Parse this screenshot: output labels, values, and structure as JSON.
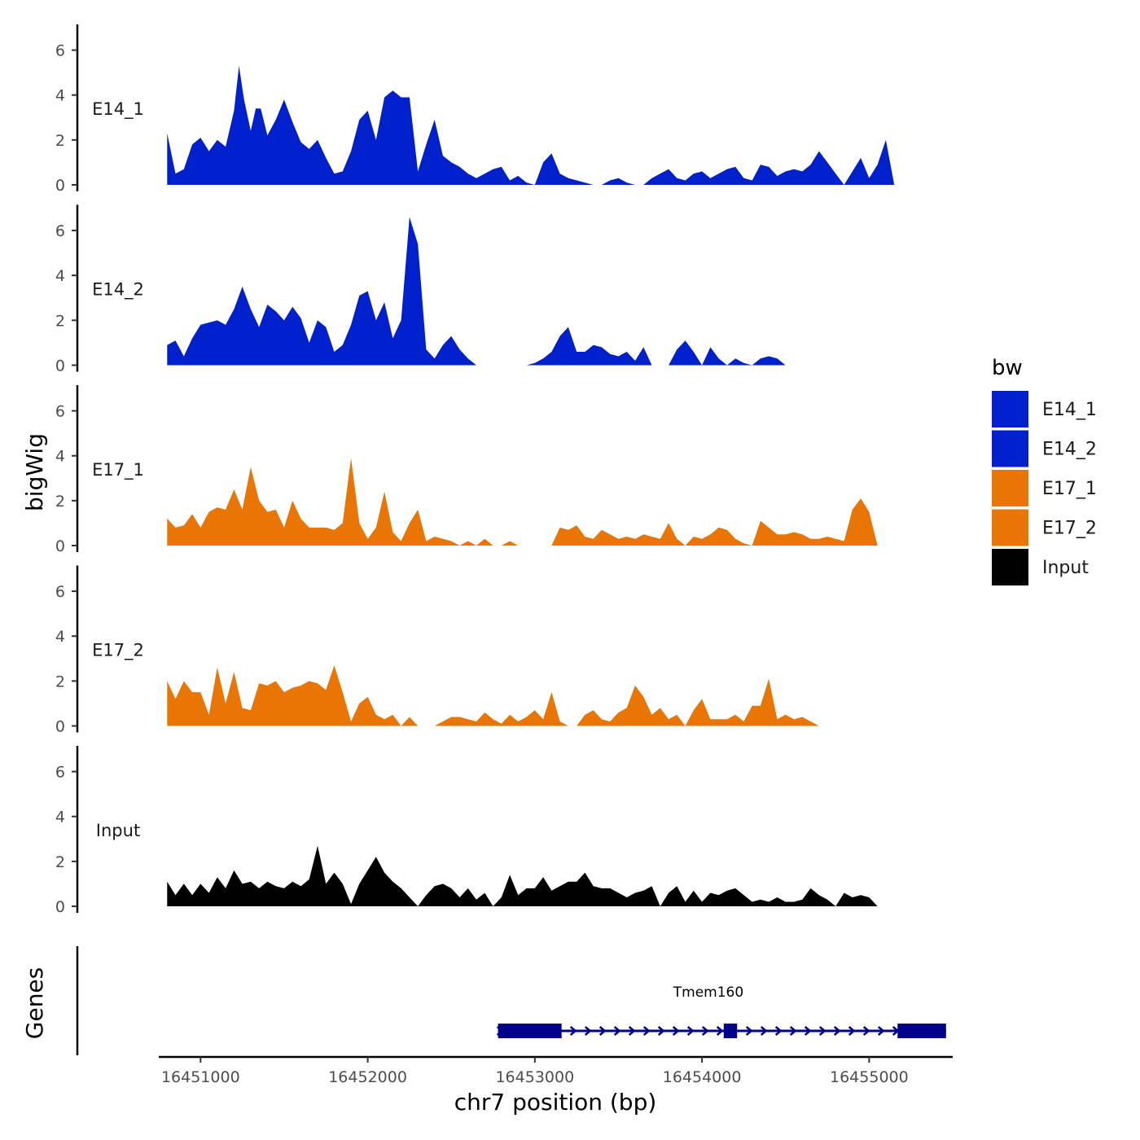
{
  "chart_data": {
    "type": "area",
    "title": "",
    "ylabel": "bigWig",
    "xlabel": "chr7 position (bp)",
    "genes_label": "Genes",
    "xlim": [
      16450750,
      16455500
    ],
    "ylim": [
      0,
      7
    ],
    "yticks": [
      0,
      2,
      4,
      6
    ],
    "xticks": [
      16451000,
      16452000,
      16453000,
      16454000,
      16455000
    ],
    "xtick_labels": [
      "16451000",
      "16452000",
      "16453000",
      "16454000",
      "16455000"
    ],
    "legend": {
      "title": "bw",
      "position": "right",
      "entries": [
        {
          "label": "E14_1",
          "color": "#0020CC"
        },
        {
          "label": "E14_2",
          "color": "#0020CC"
        },
        {
          "label": "E17_1",
          "color": "#E87504"
        },
        {
          "label": "E17_2",
          "color": "#E87504"
        },
        {
          "label": "Input",
          "color": "#000000"
        }
      ]
    },
    "series": [
      {
        "name": "E14_1",
        "color": "#0020CC",
        "x": [
          16450800,
          16450850,
          16450900,
          16450950,
          16451000,
          16451050,
          16451100,
          16451150,
          16451200,
          16451230,
          16451260,
          16451300,
          16451330,
          16451360,
          16451400,
          16451450,
          16451500,
          16451550,
          16451600,
          16451650,
          16451700,
          16451750,
          16451800,
          16451850,
          16451900,
          16451950,
          16452000,
          16452050,
          16452100,
          16452150,
          16452200,
          16452250,
          16452300,
          16452350,
          16452400,
          16452450,
          16452500,
          16452550,
          16452600,
          16452650,
          16452700,
          16452750,
          16452800,
          16452850,
          16452900,
          16452950,
          16453000,
          16453050,
          16453100,
          16453150,
          16453200,
          16453250,
          16453300,
          16453350,
          16453400,
          16453450,
          16453500,
          16453550,
          16453600,
          16453650,
          16453700,
          16453750,
          16453800,
          16453850,
          16453900,
          16453950,
          16454000,
          16454050,
          16454100,
          16454150,
          16454200,
          16454250,
          16454300,
          16454350,
          16454400,
          16454450,
          16454500,
          16454550,
          16454600,
          16454650,
          16454700,
          16454750,
          16454800,
          16454850,
          16454900,
          16454950,
          16455000,
          16455050,
          16455100,
          16455150,
          16455200,
          16455250,
          16455300,
          16455350,
          16455400,
          16455460
        ],
        "values": [
          2.3,
          0.5,
          0.7,
          1.8,
          2.1,
          1.5,
          2.0,
          1.7,
          3.3,
          5.3,
          3.8,
          2.4,
          3.4,
          3.4,
          2.2,
          2.9,
          3.8,
          2.8,
          1.9,
          1.6,
          2.0,
          1.2,
          0.5,
          0.6,
          1.5,
          2.9,
          3.3,
          2.0,
          3.9,
          4.2,
          3.9,
          3.9,
          0.6,
          1.8,
          2.9,
          1.3,
          1.0,
          0.8,
          0.5,
          0.3,
          0.5,
          0.7,
          0.8,
          0.2,
          0.4,
          0.1,
          0.0,
          1.0,
          1.4,
          0.5,
          0.3,
          0.2,
          0.1,
          0.0,
          0.0,
          0.2,
          0.3,
          0.1,
          0.0,
          0.0,
          0.3,
          0.5,
          0.7,
          0.3,
          0.2,
          0.5,
          0.6,
          0.3,
          0.5,
          0.7,
          0.8,
          0.3,
          0.2,
          0.9,
          0.8,
          0.4,
          0.6,
          0.7,
          0.6,
          0.9,
          1.5,
          1.0,
          0.5,
          0.0,
          0.6,
          1.2,
          0.3,
          0.9,
          2.0,
          0.0,
          0.0,
          0.0,
          0.0,
          0.0,
          0.0,
          0.0
        ]
      },
      {
        "name": "E14_2",
        "color": "#0020CC",
        "x": [
          16450800,
          16450850,
          16450900,
          16450950,
          16451000,
          16451050,
          16451100,
          16451150,
          16451200,
          16451250,
          16451300,
          16451350,
          16451400,
          16451450,
          16451500,
          16451550,
          16451600,
          16451650,
          16451700,
          16451750,
          16451800,
          16451850,
          16451900,
          16451950,
          16452000,
          16452050,
          16452100,
          16452150,
          16452200,
          16452250,
          16452300,
          16452350,
          16452400,
          16452450,
          16452500,
          16452550,
          16452600,
          16452650,
          16452700,
          16452750,
          16452800,
          16452850,
          16452900,
          16452950,
          16453000,
          16453050,
          16453100,
          16453150,
          16453200,
          16453250,
          16453300,
          16453350,
          16453400,
          16453450,
          16453500,
          16453550,
          16453600,
          16453650,
          16453700,
          16453750,
          16453800,
          16453850,
          16453900,
          16453950,
          16454000,
          16454050,
          16454100,
          16454150,
          16454200,
          16454250,
          16454300,
          16454350,
          16454400,
          16454450,
          16454500,
          16454550,
          16454600,
          16454650,
          16454700,
          16454750,
          16454800,
          16454850,
          16454900,
          16454950,
          16455000,
          16455050,
          16455100,
          16455150,
          16455200,
          16455250,
          16455300,
          16455350,
          16455400,
          16455460
        ],
        "values": [
          0.9,
          1.1,
          0.4,
          1.2,
          1.8,
          1.9,
          2.0,
          1.8,
          2.5,
          3.5,
          2.5,
          1.7,
          2.7,
          2.4,
          2.0,
          2.6,
          2.1,
          1.0,
          2.0,
          1.7,
          0.6,
          0.9,
          1.8,
          3.1,
          3.3,
          2.0,
          2.8,
          1.2,
          2.0,
          6.6,
          5.4,
          0.7,
          0.3,
          0.9,
          1.3,
          0.7,
          0.3,
          0.0,
          0.0,
          0.0,
          0.0,
          0.0,
          0.0,
          0.0,
          0.1,
          0.3,
          0.6,
          1.3,
          1.7,
          0.6,
          0.6,
          0.9,
          0.8,
          0.5,
          0.4,
          0.6,
          0.2,
          0.8,
          0.0,
          0.0,
          0.0,
          0.7,
          1.1,
          0.6,
          0.0,
          0.8,
          0.3,
          0.0,
          0.3,
          0.1,
          0.0,
          0.3,
          0.4,
          0.3,
          0.0,
          0.0,
          0.0,
          0.0,
          0.0,
          0.0,
          0.0,
          0.0,
          0.0,
          0.0,
          0.0,
          0.0,
          0.0,
          0.0,
          0.0,
          0.0,
          0.0,
          0.0,
          0.0,
          0.0
        ]
      },
      {
        "name": "E17_1",
        "color": "#E87504",
        "x": [
          16450800,
          16450850,
          16450900,
          16450950,
          16451000,
          16451050,
          16451100,
          16451150,
          16451200,
          16451250,
          16451300,
          16451350,
          16451400,
          16451450,
          16451500,
          16451550,
          16451600,
          16451650,
          16451700,
          16451750,
          16451800,
          16451850,
          16451900,
          16451950,
          16452000,
          16452050,
          16452100,
          16452150,
          16452200,
          16452250,
          16452300,
          16452350,
          16452400,
          16452450,
          16452500,
          16452550,
          16452600,
          16452650,
          16452700,
          16452750,
          16452800,
          16452850,
          16452900,
          16452950,
          16453000,
          16453050,
          16453100,
          16453150,
          16453200,
          16453250,
          16453300,
          16453350,
          16453400,
          16453450,
          16453500,
          16453550,
          16453600,
          16453650,
          16453700,
          16453750,
          16453800,
          16453850,
          16453900,
          16453950,
          16454000,
          16454050,
          16454100,
          16454150,
          16454200,
          16454250,
          16454300,
          16454350,
          16454400,
          16454450,
          16454500,
          16454550,
          16454600,
          16454650,
          16454700,
          16454750,
          16454800,
          16454850,
          16454900,
          16454950,
          16455000,
          16455050,
          16455100,
          16455150,
          16455200,
          16455250,
          16455300,
          16455350,
          16455400,
          16455460
        ],
        "values": [
          1.2,
          0.8,
          0.9,
          1.4,
          0.8,
          1.5,
          1.7,
          1.6,
          2.5,
          1.6,
          3.5,
          2.0,
          1.5,
          1.6,
          0.8,
          2.0,
          1.2,
          0.8,
          0.8,
          0.8,
          0.7,
          1.0,
          3.9,
          1.0,
          0.3,
          0.8,
          2.4,
          0.6,
          0.2,
          1.0,
          1.6,
          0.2,
          0.4,
          0.3,
          0.2,
          0.0,
          0.2,
          0.0,
          0.3,
          0.0,
          0.0,
          0.2,
          0.0,
          0.0,
          0.0,
          0.0,
          0.0,
          0.8,
          0.7,
          0.9,
          0.4,
          0.3,
          0.7,
          0.5,
          0.3,
          0.4,
          0.3,
          0.5,
          0.4,
          0.3,
          1.0,
          0.3,
          0.0,
          0.4,
          0.3,
          0.5,
          0.8,
          0.7,
          0.3,
          0.1,
          0.0,
          1.1,
          0.8,
          0.5,
          0.5,
          0.6,
          0.5,
          0.3,
          0.3,
          0.4,
          0.3,
          0.2,
          1.6,
          2.1,
          1.5,
          0.0,
          0.0,
          0.0,
          0.0,
          0.0,
          0.0,
          0.0,
          0.0,
          0.0
        ]
      },
      {
        "name": "E17_2",
        "color": "#E87504",
        "x": [
          16450800,
          16450850,
          16450900,
          16450950,
          16451000,
          16451050,
          16451100,
          16451150,
          16451200,
          16451250,
          16451300,
          16451350,
          16451400,
          16451450,
          16451500,
          16451550,
          16451600,
          16451650,
          16451700,
          16451750,
          16451800,
          16451850,
          16451900,
          16451950,
          16452000,
          16452050,
          16452100,
          16452150,
          16452200,
          16452250,
          16452300,
          16452350,
          16452400,
          16452450,
          16452500,
          16452550,
          16452600,
          16452650,
          16452700,
          16452750,
          16452800,
          16452850,
          16452900,
          16452950,
          16453000,
          16453050,
          16453100,
          16453150,
          16453200,
          16453250,
          16453300,
          16453350,
          16453400,
          16453450,
          16453500,
          16453550,
          16453600,
          16453650,
          16453700,
          16453750,
          16453800,
          16453850,
          16453900,
          16453950,
          16454000,
          16454050,
          16454100,
          16454150,
          16454200,
          16454250,
          16454300,
          16454350,
          16454400,
          16454450,
          16454500,
          16454550,
          16454600,
          16454650,
          16454700,
          16454750,
          16454800,
          16454850,
          16454900,
          16454950,
          16455000,
          16455050,
          16455100,
          16455150,
          16455200,
          16455250,
          16455300,
          16455350,
          16455400,
          16455460
        ],
        "values": [
          2.0,
          1.2,
          2.0,
          1.5,
          1.5,
          0.5,
          2.6,
          1.0,
          2.4,
          0.8,
          0.7,
          1.9,
          1.8,
          2.0,
          1.5,
          1.7,
          1.8,
          2.0,
          1.9,
          1.6,
          2.7,
          1.5,
          0.2,
          1.0,
          1.3,
          0.5,
          0.3,
          0.5,
          0.0,
          0.4,
          0.0,
          0.0,
          0.0,
          0.2,
          0.4,
          0.4,
          0.3,
          0.2,
          0.6,
          0.3,
          0.1,
          0.5,
          0.2,
          0.4,
          0.7,
          0.3,
          1.5,
          0.2,
          0.0,
          0.0,
          0.5,
          0.7,
          0.3,
          0.2,
          0.6,
          0.8,
          1.8,
          1.3,
          0.5,
          0.8,
          0.3,
          0.5,
          0.0,
          0.7,
          1.2,
          0.3,
          0.3,
          0.3,
          0.5,
          0.2,
          0.9,
          0.9,
          2.1,
          0.3,
          0.5,
          0.3,
          0.4,
          0.2,
          0.0,
          0.0,
          0.0,
          0.0,
          0.0,
          0.0,
          0.0,
          0.0,
          0.0,
          0.0,
          0.0,
          0.0,
          0.0,
          0.0,
          0.0,
          0.0
        ]
      },
      {
        "name": "Input",
        "color": "#000000",
        "x": [
          16450800,
          16450850,
          16450900,
          16450950,
          16451000,
          16451050,
          16451100,
          16451150,
          16451200,
          16451250,
          16451300,
          16451350,
          16451400,
          16451450,
          16451500,
          16451550,
          16451600,
          16451650,
          16451700,
          16451750,
          16451800,
          16451850,
          16451900,
          16451950,
          16452000,
          16452050,
          16452100,
          16452150,
          16452200,
          16452250,
          16452300,
          16452350,
          16452400,
          16452450,
          16452500,
          16452550,
          16452600,
          16452650,
          16452700,
          16452750,
          16452800,
          16452850,
          16452900,
          16452950,
          16453000,
          16453050,
          16453100,
          16453150,
          16453200,
          16453250,
          16453300,
          16453350,
          16453400,
          16453450,
          16453500,
          16453550,
          16453600,
          16453650,
          16453700,
          16453750,
          16453800,
          16453850,
          16453900,
          16453950,
          16454000,
          16454050,
          16454100,
          16454150,
          16454200,
          16454250,
          16454300,
          16454350,
          16454400,
          16454450,
          16454500,
          16454550,
          16454600,
          16454650,
          16454700,
          16454750,
          16454800,
          16454850,
          16454900,
          16454950,
          16455000,
          16455050,
          16455100,
          16455150,
          16455200,
          16455250,
          16455300,
          16455350,
          16455400,
          16455460
        ],
        "values": [
          1.1,
          0.5,
          1.0,
          0.5,
          1.0,
          0.6,
          1.3,
          0.8,
          1.6,
          1.0,
          1.1,
          0.8,
          1.1,
          0.9,
          0.8,
          1.1,
          0.9,
          1.2,
          2.7,
          1.0,
          1.5,
          1.0,
          0.1,
          1.0,
          1.6,
          2.2,
          1.5,
          1.1,
          0.8,
          0.4,
          0.0,
          0.5,
          0.9,
          1.0,
          0.8,
          0.4,
          0.8,
          0.3,
          0.6,
          0.0,
          0.4,
          1.4,
          0.5,
          0.8,
          0.8,
          1.3,
          0.7,
          0.9,
          1.1,
          1.1,
          1.5,
          0.9,
          0.8,
          0.8,
          0.6,
          0.4,
          0.6,
          0.7,
          0.9,
          0.0,
          0.6,
          0.9,
          0.2,
          0.7,
          0.2,
          0.6,
          0.5,
          0.7,
          0.8,
          0.5,
          0.2,
          0.3,
          0.2,
          0.4,
          0.2,
          0.2,
          0.3,
          0.8,
          0.5,
          0.3,
          0.0,
          0.6,
          0.4,
          0.5,
          0.4,
          0.0,
          0.0,
          0.0,
          0.0,
          0.0,
          0.0,
          0.0,
          0.0,
          0.0
        ]
      }
    ],
    "genes": [
      {
        "name": "Tmem160",
        "strand": "+",
        "start": 16452780,
        "end": 16455460,
        "color": "#00008B",
        "exons": [
          [
            16452780,
            16453160
          ],
          [
            16454130,
            16454210
          ],
          [
            16455170,
            16455460
          ]
        ]
      }
    ]
  }
}
